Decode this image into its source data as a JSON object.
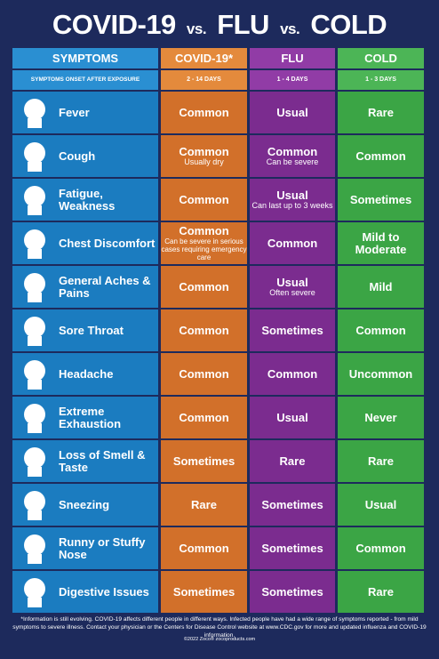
{
  "title": [
    "COVID-19",
    "vs.",
    "FLU",
    "vs.",
    "COLD"
  ],
  "header": [
    "SYMPTOMS",
    "COVID-19*",
    "FLU",
    "COLD"
  ],
  "onset": [
    "SYMPTOMS ONSET AFTER EXPOSURE",
    "2 - 14 DAYS",
    "1 - 4 DAYS",
    "1 - 3 DAYS"
  ],
  "rows": [
    {
      "symptom": "Fever",
      "covid": {
        "text": "Common"
      },
      "flu": {
        "text": "Usual"
      },
      "cold": {
        "text": "Rare"
      }
    },
    {
      "symptom": "Cough",
      "covid": {
        "text": "Common",
        "note": "Usually dry"
      },
      "flu": {
        "text": "Common",
        "note": "Can be severe"
      },
      "cold": {
        "text": "Common"
      }
    },
    {
      "symptom": "Fatigue, Weakness",
      "covid": {
        "text": "Common"
      },
      "flu": {
        "text": "Usual",
        "note": "Can last up to 3 weeks"
      },
      "cold": {
        "text": "Sometimes"
      }
    },
    {
      "symptom": "Chest Discomfort",
      "covid": {
        "text": "Common",
        "note": "Can be severe in serious cases requiring emergency care"
      },
      "flu": {
        "text": "Common"
      },
      "cold": {
        "text": "Mild to Moderate"
      }
    },
    {
      "symptom": "General Aches & Pains",
      "covid": {
        "text": "Common"
      },
      "flu": {
        "text": "Usual",
        "note": "Often severe"
      },
      "cold": {
        "text": "Mild"
      }
    },
    {
      "symptom": "Sore Throat",
      "covid": {
        "text": "Common"
      },
      "flu": {
        "text": "Sometimes"
      },
      "cold": {
        "text": "Common"
      }
    },
    {
      "symptom": "Headache",
      "covid": {
        "text": "Common"
      },
      "flu": {
        "text": "Common"
      },
      "cold": {
        "text": "Uncommon"
      }
    },
    {
      "symptom": "Extreme Exhaustion",
      "covid": {
        "text": "Common"
      },
      "flu": {
        "text": "Usual"
      },
      "cold": {
        "text": "Never"
      }
    },
    {
      "symptom": "Loss of Smell & Taste",
      "covid": {
        "text": "Sometimes"
      },
      "flu": {
        "text": "Rare"
      },
      "cold": {
        "text": "Rare"
      }
    },
    {
      "symptom": "Sneezing",
      "covid": {
        "text": "Rare"
      },
      "flu": {
        "text": "Sometimes"
      },
      "cold": {
        "text": "Usual"
      }
    },
    {
      "symptom": "Runny or Stuffy Nose",
      "covid": {
        "text": "Common"
      },
      "flu": {
        "text": "Sometimes"
      },
      "cold": {
        "text": "Common"
      }
    },
    {
      "symptom": "Digestive Issues",
      "covid": {
        "text": "Sometimes"
      },
      "flu": {
        "text": "Sometimes"
      },
      "cold": {
        "text": "Rare"
      }
    }
  ],
  "footnote": "*Information is still evolving. COVID-19 affects different people in different ways. Infected people have had a wide range of symptoms reported - from mild symptoms to severe illness. Contact your physician or the Centers for Disease Control website at www.CDC.gov for more and updated influenza and COVID-19 information.",
  "copyright": "©2022 Zoco® zocoproducts.com"
}
